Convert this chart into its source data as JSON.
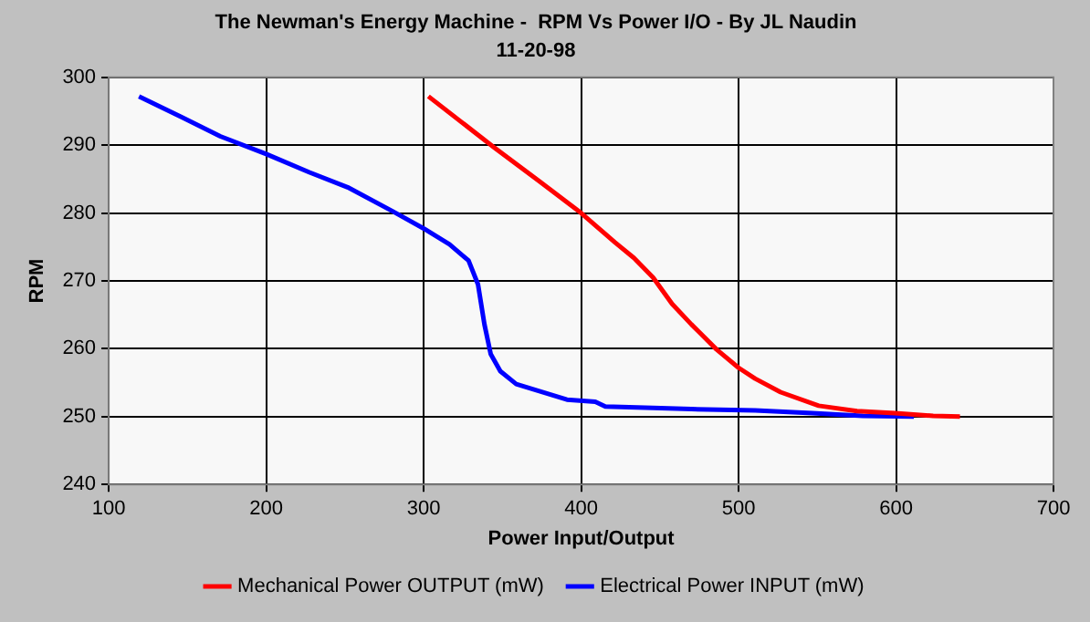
{
  "chart_data": {
    "type": "line",
    "title": "The Newman's Energy Machine -  RPM Vs Power I/O - By JL Naudin",
    "subtitle": "11-20-98",
    "xlabel": "Power Input/Output",
    "ylabel": "RPM",
    "xlim": [
      100,
      700
    ],
    "xticks": [
      100,
      200,
      300,
      400,
      500,
      600,
      700
    ],
    "ylim": [
      240,
      300
    ],
    "yticks": [
      240,
      250,
      260,
      270,
      280,
      290,
      300
    ],
    "grid": true,
    "legend": "bottom",
    "marker": "none",
    "line_style": "solid",
    "series": [
      {
        "name": "Mechanical Power OUTPUT (mW)",
        "color": "#ff0000",
        "x": [
          303,
          344.6,
          372.9,
          400,
          421.4,
          433.5,
          445.7,
          457.8,
          470,
          486,
          500,
          510.5,
          526.7,
          550.9,
          575.2,
          599.4,
          623.6,
          640.6
        ],
        "values": [
          297.2,
          289.7,
          284.8,
          280,
          275.7,
          273.4,
          270.5,
          266.6,
          263.6,
          259.9,
          257.2,
          255.6,
          253.6,
          251.6,
          250.8,
          250.5,
          250.1,
          250
        ]
      },
      {
        "name": "Electrical Power INPUT (mW)",
        "color": "#0000ff",
        "x": [
          119.2,
          146.7,
          170.9,
          200,
          227.5,
          251.7,
          280,
          300.2,
          316.4,
          328.5,
          334.5,
          338.6,
          342.6,
          348.7,
          358.8,
          373,
          391,
          409,
          415.4,
          445.7,
          470,
          510.5,
          546.9,
          579,
          611.3
        ],
        "values": [
          297.2,
          294.1,
          291.3,
          288.7,
          286,
          283.8,
          280.3,
          277.7,
          275.4,
          273,
          269.5,
          263.6,
          259.2,
          256.7,
          254.8,
          253.8,
          252.5,
          252.2,
          251.5,
          251.3,
          251.1,
          250.9,
          250.5,
          250.1,
          250
        ]
      }
    ]
  }
}
